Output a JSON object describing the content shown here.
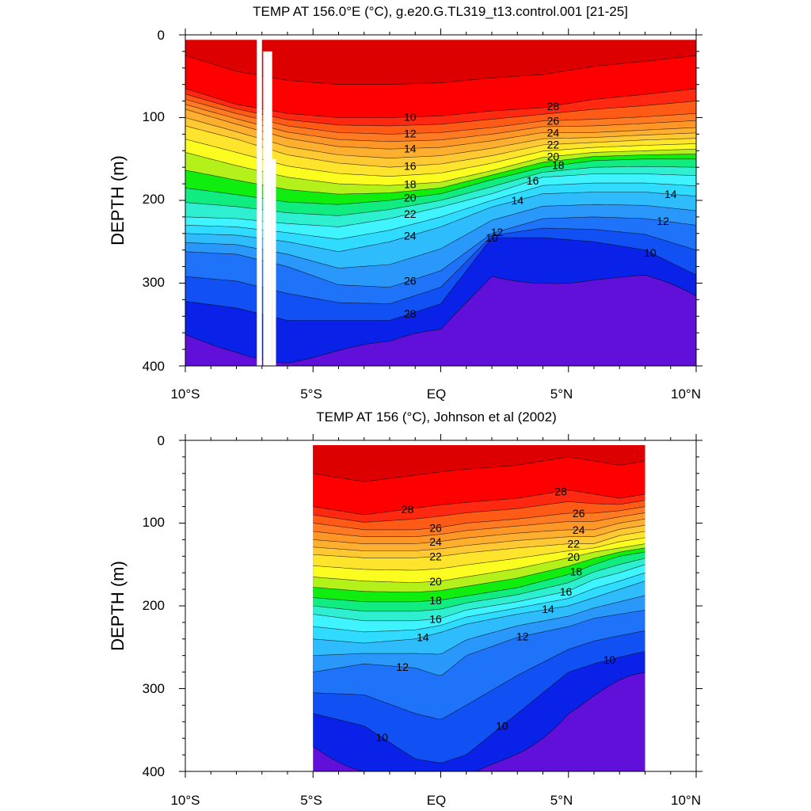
{
  "chart_data": [
    {
      "type": "heatmap",
      "title": "TEMP AT 156.0°E (°C), g.e20.G.TL319_t13.control.001 [21-25]",
      "xlabel": "",
      "ylabel": "DEPTH (m)",
      "xlim": [
        -10,
        10
      ],
      "ylim": [
        400,
        0
      ],
      "x_ticks": [
        "10°S",
        "5°S",
        "EQ",
        "5°N",
        "10°N"
      ],
      "y_ticks": [
        "0",
        "100",
        "200",
        "300",
        "400"
      ],
      "contour_interval": 1,
      "contour_labels": [
        "28",
        "26",
        "24",
        "22",
        "20",
        "18",
        "16",
        "14",
        "12",
        "10",
        "28",
        "26",
        "24",
        "22",
        "20",
        "18",
        "16",
        "14",
        "12",
        "10",
        "14",
        "12",
        "10"
      ],
      "isotherm_depths": {
        "x": [
          -10,
          -8,
          -6,
          -4,
          -2,
          0,
          2,
          4,
          6,
          8,
          10
        ],
        "28": [
          65,
          84,
          95,
          100,
          100,
          98,
          92,
          88,
          78,
          72,
          65
        ],
        "26": [
          78,
          95,
          110,
          118,
          120,
          118,
          112,
          104,
          102,
          99,
          95
        ],
        "24": [
          90,
          108,
          125,
          135,
          138,
          136,
          128,
          118,
          118,
          115,
          112
        ],
        "22": [
          110,
          126,
          145,
          155,
          160,
          156,
          146,
          133,
          130,
          127,
          125
        ],
        "20": [
          142,
          158,
          172,
          180,
          182,
          178,
          164,
          148,
          142,
          140,
          138
        ],
        "18": [
          185,
          193,
          202,
          205,
          200,
          192,
          175,
          160,
          152,
          150,
          150
        ],
        "16": [
          220,
          222,
          228,
          232,
          222,
          208,
          192,
          172,
          168,
          168,
          170
        ],
        "14": [
          240,
          242,
          250,
          262,
          250,
          232,
          208,
          192,
          190,
          190,
          195
        ],
        "12": [
          262,
          265,
          280,
          302,
          305,
          285,
          240,
          222,
          220,
          222,
          230
        ],
        "10": [
          322,
          330,
          345,
          345,
          345,
          325,
          245,
          245,
          250,
          260,
          290
        ]
      }
    },
    {
      "type": "heatmap",
      "title": "TEMP AT 156 (°C), Johnson et al (2002)",
      "xlabel": "",
      "ylabel": "DEPTH (m)",
      "xlim": [
        -10,
        10
      ],
      "ylim": [
        400,
        0
      ],
      "data_xrange": [
        -5,
        8
      ],
      "x_ticks": [
        "10°S",
        "5°S",
        "EQ",
        "5°N",
        "10°N"
      ],
      "y_ticks": [
        "0",
        "100",
        "200",
        "300",
        "400"
      ],
      "contour_interval": 1,
      "contour_labels": [
        "28",
        "26",
        "24",
        "22",
        "20",
        "18",
        "16",
        "14",
        "12",
        "10",
        "28",
        "26",
        "24",
        "22",
        "20",
        "18",
        "16",
        "14",
        "12",
        "10",
        "10"
      ],
      "isotherm_depths": {
        "x": [
          -5,
          -3,
          -1,
          0,
          1,
          3,
          5,
          6,
          7,
          8
        ],
        "28": [
          80,
          90,
          82,
          78,
          75,
          70,
          60,
          65,
          70,
          65
        ],
        "26": [
          100,
          108,
          108,
          105,
          100,
          95,
          88,
          88,
          85,
          80
        ],
        "24": [
          120,
          125,
          125,
          122,
          118,
          112,
          108,
          108,
          100,
          95
        ],
        "22": [
          138,
          142,
          142,
          140,
          136,
          130,
          125,
          125,
          115,
          110
        ],
        "20": [
          165,
          170,
          172,
          170,
          165,
          155,
          142,
          135,
          130,
          125
        ],
        "18": [
          190,
          195,
          195,
          193,
          188,
          178,
          162,
          150,
          140,
          135
        ],
        "16": [
          210,
          218,
          218,
          215,
          205,
          195,
          182,
          168,
          160,
          150
        ],
        "14": [
          240,
          245,
          240,
          232,
          222,
          210,
          200,
          190,
          180,
          170
        ],
        "12": [
          280,
          270,
          275,
          285,
          260,
          238,
          225,
          215,
          210,
          205
        ],
        "10": [
          330,
          345,
          385,
          390,
          380,
          330,
          280,
          270,
          262,
          255
        ]
      }
    }
  ]
}
